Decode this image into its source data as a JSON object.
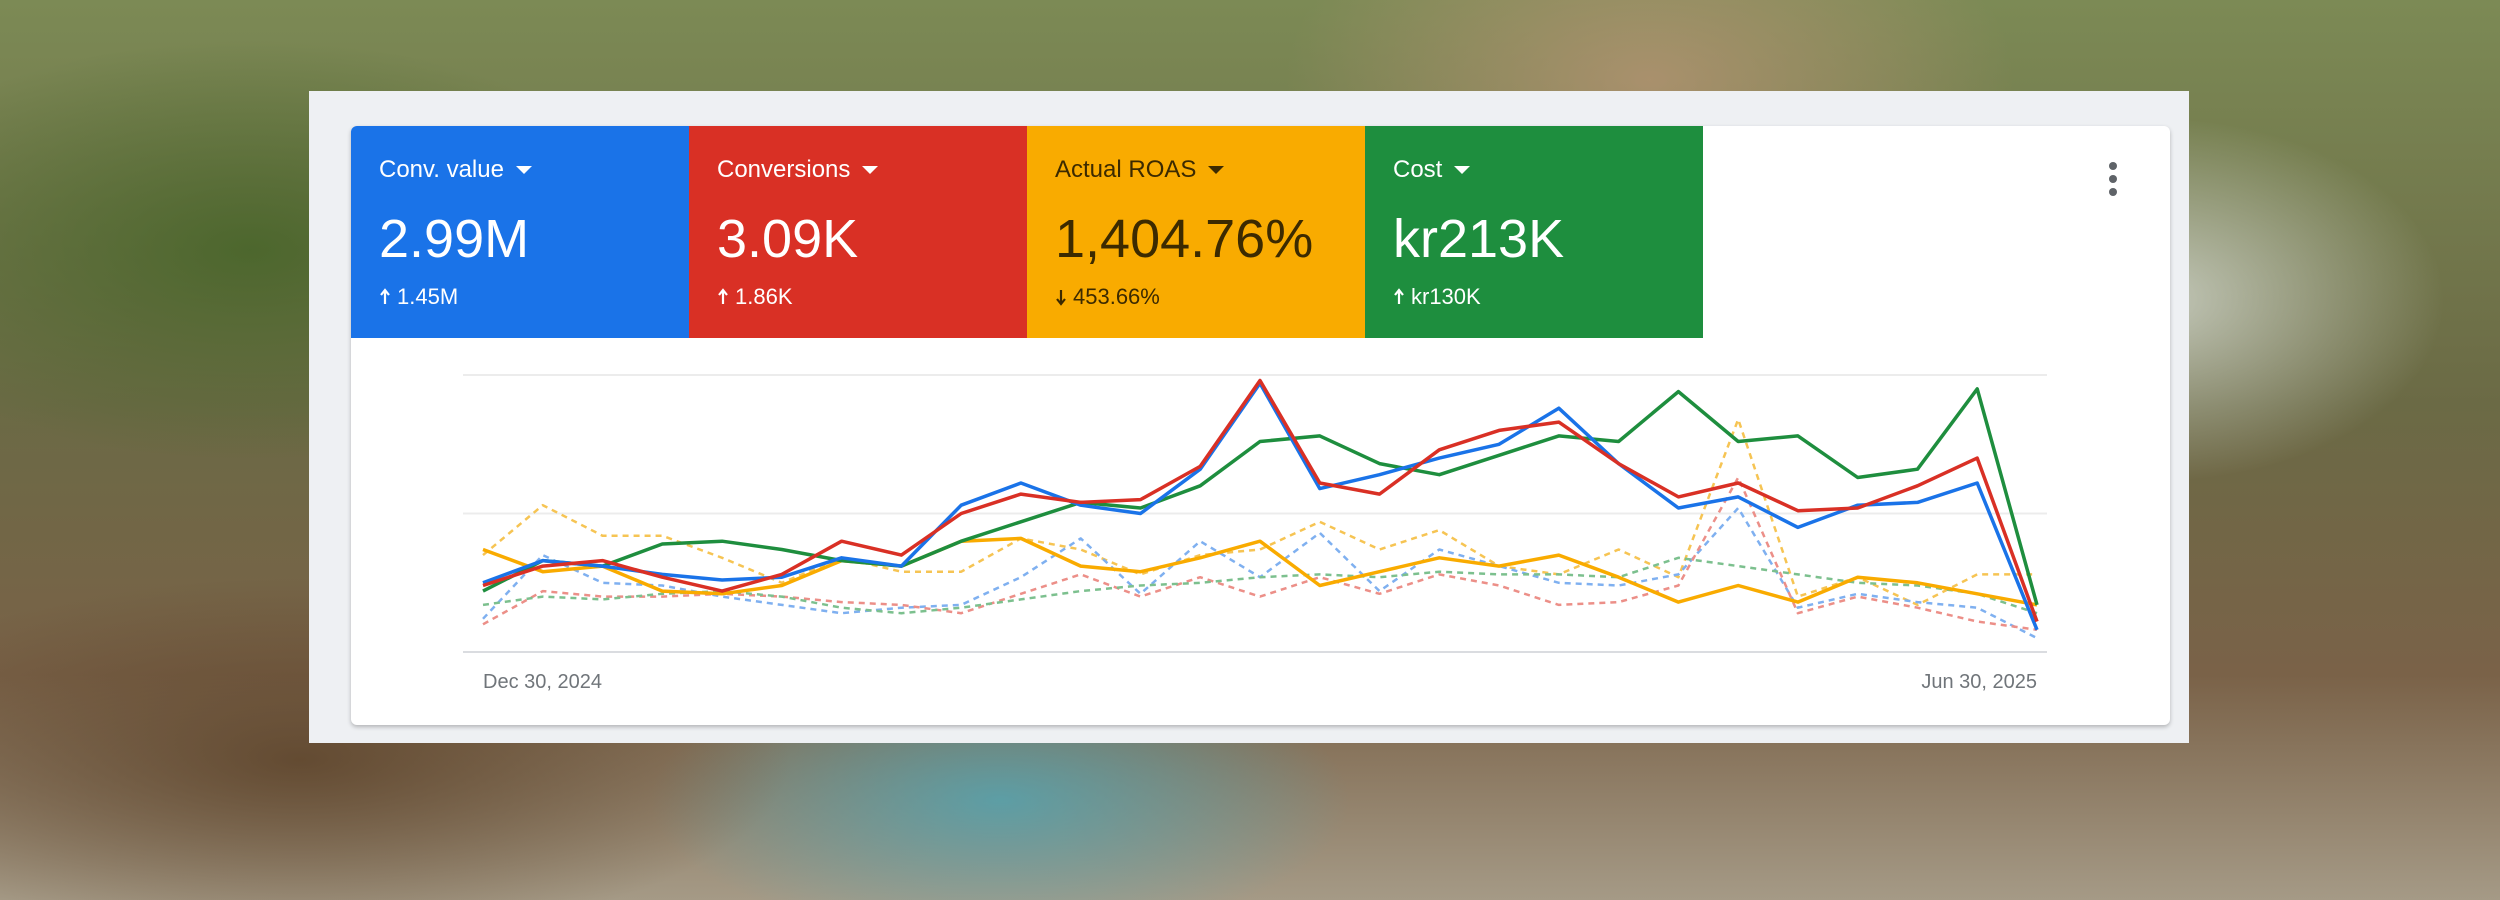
{
  "metrics": [
    {
      "label": "Conv. value",
      "value": "2.99M",
      "change": "1.45M",
      "direction": "up",
      "color": "#1a73e8",
      "text_color": "#ffffff"
    },
    {
      "label": "Conversions",
      "value": "3.09K",
      "change": "1.86K",
      "direction": "up",
      "color": "#d93025",
      "text_color": "#ffffff"
    },
    {
      "label": "Actual ROAS",
      "value": "1,404.76%",
      "change": "453.66%",
      "direction": "down",
      "color": "#f9ab00",
      "text_color": "#3c2a00"
    },
    {
      "label": "Cost",
      "value": "kr213K",
      "change": "kr130K",
      "direction": "up",
      "color": "#1e8e3e",
      "text_color": "#ffffff"
    }
  ],
  "chart_data": {
    "type": "line",
    "categories": [
      "Dec 30, 2024",
      null,
      null,
      null,
      null,
      null,
      null,
      null,
      null,
      null,
      null,
      null,
      null,
      null,
      null,
      null,
      null,
      null,
      null,
      null,
      null,
      null,
      null,
      null,
      null,
      null,
      "Jun 30, 2025"
    ],
    "ylim": [
      0,
      100
    ],
    "yticks": [
      0,
      50,
      100
    ],
    "grid": true,
    "series": [
      {
        "color": "#f6c453",
        "dashed": true,
        "values": [
          35,
          53,
          42,
          42,
          34,
          25,
          34,
          29,
          29,
          41,
          37,
          28,
          35,
          37,
          47,
          37,
          44,
          31,
          28,
          37,
          27,
          84,
          20,
          27,
          17,
          28,
          28
        ]
      },
      {
        "color": "#7fb0f0",
        "dashed": true,
        "values": [
          12,
          35,
          25,
          24,
          20,
          17,
          14,
          16,
          17,
          27,
          41,
          21,
          40,
          27,
          43,
          22,
          37,
          31,
          25,
          24,
          28,
          52,
          16,
          21,
          18,
          16,
          5
        ]
      },
      {
        "color": "#ec8f88",
        "dashed": true,
        "values": [
          10,
          22,
          20,
          20,
          21,
          20,
          18,
          17,
          14,
          21,
          28,
          20,
          27,
          20,
          27,
          21,
          28,
          24,
          17,
          18,
          24,
          63,
          14,
          20,
          16,
          11,
          8
        ]
      },
      {
        "color": "#7cc08e",
        "dashed": true,
        "values": [
          17,
          20,
          19,
          21,
          22,
          20,
          16,
          14,
          16,
          19,
          22,
          24,
          25,
          27,
          28,
          27,
          29,
          28,
          28,
          27,
          34,
          31,
          28,
          25,
          24,
          21,
          14
        ]
      },
      {
        "name": "Actual ROAS",
        "color": "#f9ab00",
        "values": [
          37,
          29,
          31,
          22,
          21,
          24,
          33,
          31,
          40,
          41,
          31,
          29,
          34,
          40,
          24,
          29,
          34,
          31,
          35,
          27,
          18,
          24,
          18,
          27,
          25,
          21,
          17
        ]
      },
      {
        "name": "Cost",
        "color": "#1e8e3e",
        "values": [
          22,
          33,
          31,
          39,
          40,
          37,
          33,
          31,
          40,
          47,
          54,
          52,
          60,
          76,
          78,
          68,
          64,
          71,
          78,
          76,
          94,
          76,
          78,
          63,
          66,
          95,
          17
        ]
      },
      {
        "name": "Conv. value",
        "color": "#1a73e8",
        "values": [
          25,
          33,
          31,
          28,
          26,
          27,
          34,
          31,
          53,
          61,
          53,
          50,
          66,
          97,
          59,
          64,
          70,
          75,
          88,
          68,
          52,
          56,
          45,
          53,
          54,
          61,
          8
        ]
      },
      {
        "name": "Conversions",
        "color": "#d93025",
        "values": [
          24,
          31,
          33,
          27,
          22,
          28,
          40,
          35,
          50,
          57,
          54,
          55,
          67,
          98,
          61,
          57,
          73,
          80,
          83,
          68,
          56,
          61,
          51,
          52,
          60,
          70,
          11
        ]
      }
    ]
  }
}
